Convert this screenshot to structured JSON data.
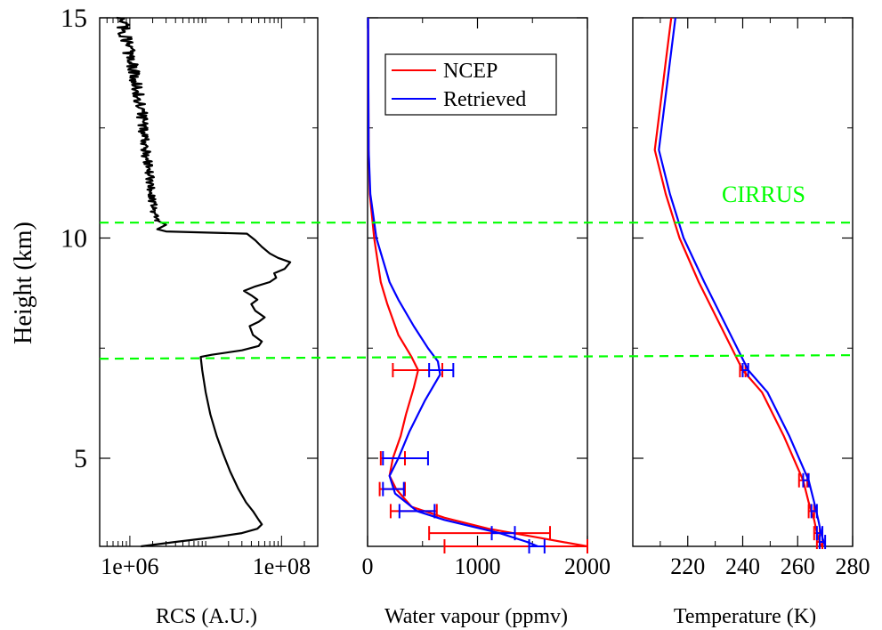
{
  "chart_data": {
    "type": "line",
    "y_axis": {
      "label": "Height (km)",
      "range": [
        3,
        15
      ],
      "ticks": [
        5,
        10,
        15
      ],
      "minor_ticks": [
        7.5,
        12.5
      ]
    },
    "cloud_layer": {
      "label": "CIRRUS",
      "label_color": "#00ff00",
      "line_color": "#00ff00",
      "top_km": 10.35,
      "base_km": 7.3
    },
    "panels": [
      {
        "id": "rcs",
        "xlabel": "RCS (A.U.)",
        "scale": "log",
        "xlim": [
          400000,
          300000000
        ],
        "tick_labels": [
          {
            "value": 1000000,
            "label": "1e+06"
          },
          {
            "value": 100000000,
            "label": "1e+08"
          }
        ],
        "series": [
          {
            "color": "#000000",
            "noisy_above_km": 10.4,
            "points": [
              [
                1400000,
                3.0
              ],
              [
                4000000,
                3.1
              ],
              [
                12000000,
                3.2
              ],
              [
                30000000,
                3.3
              ],
              [
                48000000,
                3.4
              ],
              [
                55000000,
                3.5
              ],
              [
                50000000,
                3.6
              ],
              [
                42000000,
                3.8
              ],
              [
                34000000,
                4.0
              ],
              [
                27000000,
                4.3
              ],
              [
                21000000,
                4.7
              ],
              [
                17000000,
                5.1
              ],
              [
                14000000,
                5.5
              ],
              [
                11500000,
                6.0
              ],
              [
                10000000,
                6.5
              ],
              [
                9000000,
                7.0
              ],
              [
                8600000,
                7.3
              ],
              [
                12000000,
                7.35
              ],
              [
                30000000,
                7.45
              ],
              [
                50000000,
                7.55
              ],
              [
                55000000,
                7.65
              ],
              [
                42000000,
                7.8
              ],
              [
                38000000,
                8.0
              ],
              [
                50000000,
                8.1
              ],
              [
                60000000,
                8.2
              ],
              [
                45000000,
                8.35
              ],
              [
                40000000,
                8.5
              ],
              [
                48000000,
                8.6
              ],
              [
                40000000,
                8.7
              ],
              [
                32000000,
                8.8
              ],
              [
                45000000,
                8.9
              ],
              [
                70000000,
                9.0
              ],
              [
                85000000,
                9.1
              ],
              [
                80000000,
                9.2
              ],
              [
                110000000,
                9.3
              ],
              [
                130000000,
                9.45
              ],
              [
                90000000,
                9.55
              ],
              [
                70000000,
                9.65
              ],
              [
                55000000,
                9.8
              ],
              [
                45000000,
                9.95
              ],
              [
                35000000,
                10.1
              ],
              [
                3000000,
                10.15
              ],
              [
                2300000,
                10.2
              ],
              [
                3000000,
                10.3
              ],
              [
                2300000,
                10.4
              ],
              [
                2100000,
                10.6
              ],
              [
                1900000,
                11.0
              ],
              [
                1800000,
                11.5
              ],
              [
                1600000,
                12.0
              ],
              [
                1500000,
                12.5
              ],
              [
                1400000,
                13.0
              ],
              [
                1200000,
                13.5
              ],
              [
                1050000,
                14.0
              ],
              [
                900000,
                14.5
              ],
              [
                750000,
                15.0
              ]
            ]
          }
        ]
      },
      {
        "id": "water",
        "xlabel": "Water vapour (ppmv)",
        "scale": "linear",
        "xlim": [
          0,
          2000
        ],
        "ticks": [
          0,
          1000,
          2000
        ],
        "minor_ticks": [
          500,
          1500
        ],
        "legend": {
          "position": "top-left",
          "entries": [
            "NCEP",
            "Retrieved"
          ]
        },
        "series": [
          {
            "name": "NCEP",
            "color": "#ff0000",
            "points": [
              [
                2000,
                3.0
              ],
              [
                1550,
                3.2
              ],
              [
                1100,
                3.4
              ],
              [
                700,
                3.65
              ],
              [
                400,
                3.9
              ],
              [
                260,
                4.3
              ],
              [
                200,
                4.6
              ],
              [
                230,
                5.0
              ],
              [
                300,
                5.5
              ],
              [
                350,
                6.0
              ],
              [
                420,
                6.6
              ],
              [
                460,
                7.0
              ],
              [
                400,
                7.3
              ],
              [
                280,
                7.8
              ],
              [
                180,
                8.5
              ],
              [
                120,
                9.0
              ],
              [
                60,
                10.0
              ],
              [
                20,
                11.0
              ],
              [
                10,
                12.0
              ],
              [
                5,
                15.0
              ]
            ],
            "error_bars": [
              {
                "y": 7.0,
                "x": 460,
                "lo": 230,
                "hi": 680
              },
              {
                "y": 5.0,
                "x": 230,
                "lo": 120,
                "hi": 340
              },
              {
                "y": 4.3,
                "x": 260,
                "lo": 110,
                "hi": 340
              },
              {
                "y": 3.8,
                "x": 420,
                "lo": 210,
                "hi": 630
              },
              {
                "y": 3.3,
                "x": 1100,
                "lo": 560,
                "hi": 1660
              },
              {
                "y": 3.0,
                "x": 1500,
                "lo": 700,
                "hi": 2000
              }
            ]
          },
          {
            "name": "Retrieved",
            "color": "#0000ff",
            "points": [
              [
                1550,
                3.0
              ],
              [
                1450,
                3.1
              ],
              [
                1200,
                3.3
              ],
              [
                700,
                3.6
              ],
              [
                450,
                3.8
              ],
              [
                250,
                4.2
              ],
              [
                200,
                4.6
              ],
              [
                280,
                5.0
              ],
              [
                380,
                5.6
              ],
              [
                520,
                6.3
              ],
              [
                660,
                6.9
              ],
              [
                640,
                7.2
              ],
              [
                550,
                7.5
              ],
              [
                420,
                8.0
              ],
              [
                280,
                8.6
              ],
              [
                200,
                9.0
              ],
              [
                80,
                10.0
              ],
              [
                25,
                11.0
              ],
              [
                10,
                12.0
              ],
              [
                5,
                15.0
              ]
            ],
            "error_bars": [
              {
                "y": 7.0,
                "x": 660,
                "lo": 560,
                "hi": 780
              },
              {
                "y": 5.0,
                "x": 350,
                "lo": 140,
                "hi": 550
              },
              {
                "y": 4.3,
                "x": 230,
                "lo": 140,
                "hi": 330
              },
              {
                "y": 3.8,
                "x": 450,
                "lo": 290,
                "hi": 610
              },
              {
                "y": 3.3,
                "x": 1200,
                "lo": 1130,
                "hi": 1340
              },
              {
                "y": 3.0,
                "x": 1550,
                "lo": 1470,
                "hi": 1610
              }
            ]
          }
        ]
      },
      {
        "id": "temp",
        "xlabel": "Temperature (K)",
        "scale": "linear",
        "xlim": [
          200,
          280
        ],
        "ticks": [
          220,
          240,
          260,
          280
        ],
        "minor_ticks": [
          210,
          230,
          250,
          270
        ],
        "series": [
          {
            "name": "NCEP",
            "color": "#ff0000",
            "points": [
              [
                268.5,
                3.0
              ],
              [
                267,
                3.3
              ],
              [
                266,
                3.6
              ],
              [
                264,
                4.0
              ],
              [
                262,
                4.5
              ],
              [
                255,
                5.5
              ],
              [
                247,
                6.5
              ],
              [
                240,
                7.0
              ],
              [
                232,
                8.0
              ],
              [
                224,
                9.0
              ],
              [
                217,
                10.0
              ],
              [
                212,
                11.0
              ],
              [
                208,
                12.0
              ],
              [
                210,
                13.0
              ],
              [
                212,
                14.0
              ],
              [
                214,
                15.0
              ]
            ],
            "error_bars": [
              {
                "y": 7.0,
                "x": 240,
                "lo": 239,
                "hi": 241
              },
              {
                "y": 4.5,
                "x": 262,
                "lo": 260.5,
                "hi": 263.5
              },
              {
                "y": 3.8,
                "x": 265,
                "lo": 264,
                "hi": 266
              },
              {
                "y": 3.3,
                "x": 267,
                "lo": 266,
                "hi": 268
              },
              {
                "y": 3.1,
                "x": 268,
                "lo": 267,
                "hi": 269
              }
            ]
          },
          {
            "name": "Retrieved",
            "color": "#0000ff",
            "points": [
              [
                270,
                3.0
              ],
              [
                268.5,
                3.3
              ],
              [
                267.5,
                3.6
              ],
              [
                266,
                4.0
              ],
              [
                264,
                4.5
              ],
              [
                257,
                5.5
              ],
              [
                249,
                6.5
              ],
              [
                242,
                7.0
              ],
              [
                234,
                8.0
              ],
              [
                226,
                9.0
              ],
              [
                218.5,
                10.0
              ],
              [
                213.5,
                11.0
              ],
              [
                209.5,
                12.0
              ],
              [
                211.5,
                13.0
              ],
              [
                213.5,
                14.0
              ],
              [
                215.5,
                15.0
              ]
            ],
            "error_bars": [
              {
                "y": 7.0,
                "x": 241,
                "lo": 240,
                "hi": 242
              },
              {
                "y": 4.5,
                "x": 263,
                "lo": 262,
                "hi": 264
              },
              {
                "y": 3.8,
                "x": 266,
                "lo": 265,
                "hi": 267
              },
              {
                "y": 3.3,
                "x": 268,
                "lo": 267,
                "hi": 269
              },
              {
                "y": 3.1,
                "x": 269,
                "lo": 268,
                "hi": 270
              }
            ]
          }
        ]
      }
    ]
  }
}
